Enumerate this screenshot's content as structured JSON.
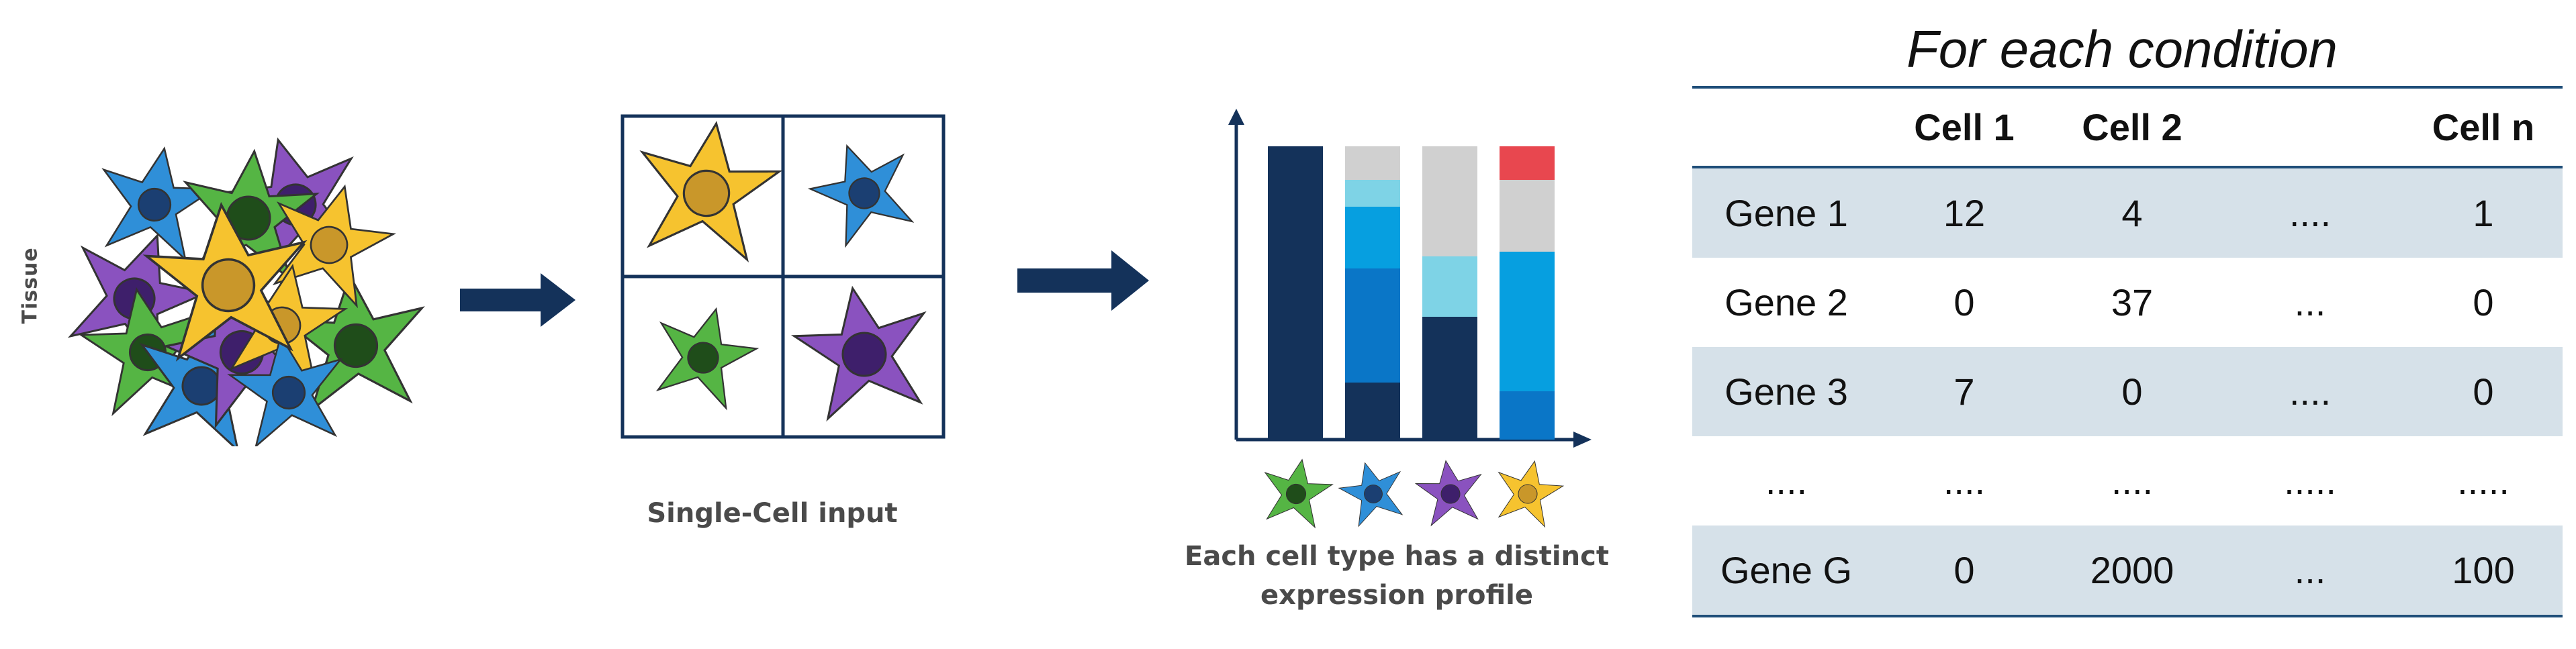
{
  "tissue": {
    "label": "Tissue"
  },
  "single_cell": {
    "caption": "Single-Cell input"
  },
  "expression_profile": {
    "caption_line1": "Each cell type has a distinct",
    "caption_line2": "expression profile"
  },
  "table": {
    "title": "For each condition",
    "headers": [
      "",
      "Cell 1",
      "Cell 2",
      "",
      "Cell n"
    ],
    "rows": [
      [
        "Gene 1",
        "12",
        "4",
        "....",
        "1"
      ],
      [
        "Gene 2",
        "0",
        "37",
        "...",
        "0"
      ],
      [
        "Gene 3",
        "7",
        "0",
        "....",
        "0"
      ],
      [
        "....",
        "....",
        "....",
        ".....",
        "....."
      ],
      [
        "Gene G",
        "0",
        "2000",
        "...",
        "100"
      ]
    ]
  },
  "colors": {
    "navy": "#14325a",
    "yellow": "#f6c32f",
    "blue": "#2f8fd8",
    "green": "#55b544",
    "purple": "#8a52bf",
    "light_gray": "#d0d0d0",
    "light_cyan": "#7ed3e6",
    "bright_blue": "#069fe0",
    "mid_blue": "#0a76c7",
    "red": "#e8474f",
    "table_shade": "#d6e1e9",
    "table_rule": "#1f4e79"
  },
  "icons": [
    "tissue-cell-cluster-icon",
    "arrow-right-icon",
    "cell-grid-icon",
    "bar-chart-icon",
    "cell-type-icon"
  ]
}
